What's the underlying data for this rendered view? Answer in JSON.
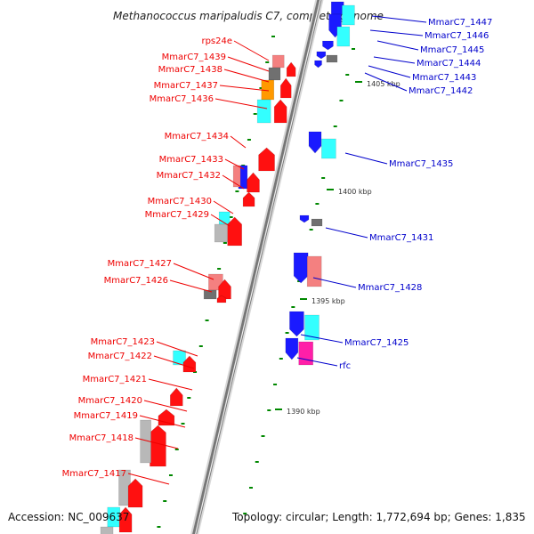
{
  "title": "Methanococcus maripaludis C7, complete genome",
  "footer": {
    "accession": "Accession: NC_009637",
    "stats": "Topology: circular; Length: 1,772,694 bp; Genes: 1,835"
  },
  "colors": {
    "left_label": "#ee0000",
    "right_label": "#0000cc",
    "red": "#ff1010",
    "blue": "#1a1aff",
    "cyan": "#33ffff",
    "pink": "#f48080",
    "magenta": "#ff1fa8",
    "orange": "#ff9900",
    "gray": "#b8b8b8",
    "darkgray": "#707070",
    "tick": "#008800",
    "backbone": "#777777"
  },
  "scale_labels": [
    "1405 kbp",
    "1400 kbp",
    "1395 kbp",
    "1390 kbp"
  ],
  "left_genes": [
    {
      "name": "rps24e",
      "color": "pink"
    },
    {
      "name": "MmarC7_1439",
      "color": "darkgray"
    },
    {
      "name": "MmarC7_1438",
      "color": "orange"
    },
    {
      "name": "MmarC7_1437",
      "color": "orange"
    },
    {
      "name": "MmarC7_1436",
      "color": "cyan"
    },
    {
      "name": "MmarC7_1434",
      "color": "red"
    },
    {
      "name": "MmarC7_1433",
      "color": "blue"
    },
    {
      "name": "MmarC7_1432",
      "color": "red"
    },
    {
      "name": "MmarC7_1430",
      "color": "cyan"
    },
    {
      "name": "MmarC7_1429",
      "color": "gray"
    },
    {
      "name": "MmarC7_1427",
      "color": "pink"
    },
    {
      "name": "MmarC7_1426",
      "color": "darkgray"
    },
    {
      "name": "MmarC7_1423",
      "color": "cyan"
    },
    {
      "name": "MmarC7_1422",
      "color": "red"
    },
    {
      "name": "MmarC7_1421",
      "color": "red"
    },
    {
      "name": "MmarC7_1420",
      "color": "red"
    },
    {
      "name": "MmarC7_1419",
      "color": "red"
    },
    {
      "name": "MmarC7_1418",
      "color": "gray"
    },
    {
      "name": "MmarC7_1417",
      "color": "gray"
    }
  ],
  "right_genes": [
    {
      "name": "MmarC7_1447",
      "color": "cyan"
    },
    {
      "name": "MmarC7_1446",
      "color": "cyan"
    },
    {
      "name": "MmarC7_1445",
      "color": "blue"
    },
    {
      "name": "MmarC7_1444",
      "color": "darkgray"
    },
    {
      "name": "MmarC7_1443",
      "color": "blue"
    },
    {
      "name": "MmarC7_1442",
      "color": "blue"
    },
    {
      "name": "MmarC7_1435",
      "color": "cyan"
    },
    {
      "name": "MmarC7_1431",
      "color": "darkgray"
    },
    {
      "name": "MmarC7_1428",
      "color": "pink"
    },
    {
      "name": "MmarC7_1425",
      "color": "cyan"
    },
    {
      "name": "rfc",
      "color": "magenta"
    }
  ]
}
